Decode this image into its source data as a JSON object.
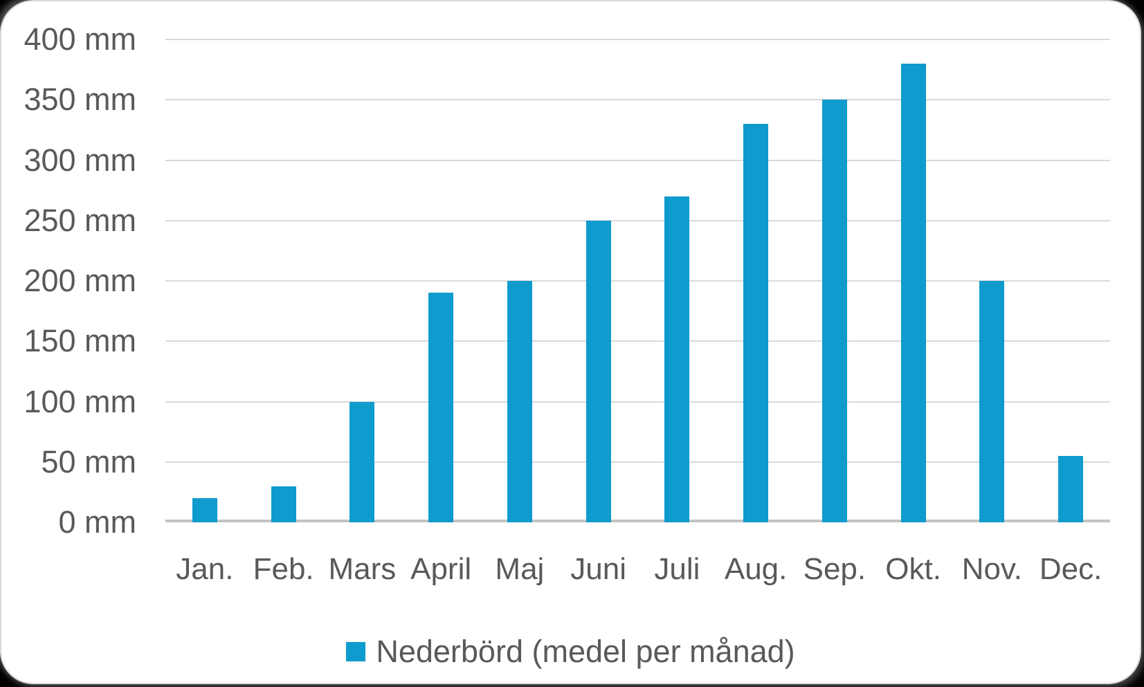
{
  "chart_data": {
    "type": "bar",
    "categories": [
      "Jan.",
      "Feb.",
      "Mars",
      "April",
      "Maj",
      "Juni",
      "Juli",
      "Aug.",
      "Sep.",
      "Okt.",
      "Nov.",
      "Dec."
    ],
    "series": [
      {
        "name": "Nederbörd (medel per månad)",
        "values": [
          20,
          30,
          100,
          190,
          200,
          250,
          270,
          330,
          350,
          380,
          200,
          55
        ]
      }
    ],
    "unit": "mm",
    "ylim": [
      0,
      400
    ],
    "ytick_step": 50,
    "ytick_labels": [
      "400 mm",
      "350 mm",
      "300 mm",
      "250 mm",
      "200 mm",
      "150 mm",
      "100 mm",
      "50 mm",
      "0 mm"
    ],
    "grid": true,
    "legend_position": "bottom",
    "colors": {
      "bar": "#0f9bcd",
      "gridline": "#d9d9d9",
      "axis_line": "#c3c3c3",
      "text": "#595959",
      "plot_background": "#ffffff",
      "card_background": "#ffffff",
      "card_border": "#d9d9d9"
    }
  },
  "legend": {
    "label": "Nederbörd (medel per månad)"
  }
}
